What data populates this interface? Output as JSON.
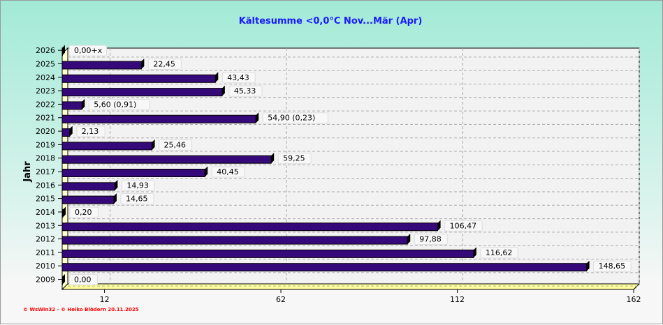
{
  "chart_data": {
    "type": "bar",
    "orientation": "horizontal",
    "title": "Kältesumme  <0,0°C  Nov...Mär (Apr)",
    "ylabel": "Jahr",
    "xlabel": "",
    "xlim": [
      0,
      162
    ],
    "xticks": [
      12,
      62,
      112,
      162
    ],
    "grid": true,
    "categories": [
      "2026",
      "2025",
      "2024",
      "2023",
      "2022",
      "2021",
      "2020",
      "2019",
      "2018",
      "2017",
      "2016",
      "2015",
      "2014",
      "2013",
      "2012",
      "2011",
      "2010",
      "2009"
    ],
    "values": [
      0,
      22.45,
      43.43,
      45.33,
      5.6,
      54.9,
      2.13,
      25.46,
      59.25,
      40.45,
      14.93,
      14.65,
      0.2,
      106.47,
      97.88,
      116.62,
      148.65,
      0
    ],
    "data_labels": [
      "0,00+x",
      "22,45",
      "43,43",
      "45,33",
      "5,60 (0,91)",
      "54,90 (0,23)",
      "2,13",
      "25,46",
      "59,25",
      "40,45",
      "14,93",
      "14,65",
      "0,20",
      "106,47",
      "97,88",
      "116,62",
      "148,65",
      "0,00"
    ],
    "bar_color": "#36097a"
  },
  "footer": "© WsWin32 - © Heiko Blödorn  20.11.2025"
}
